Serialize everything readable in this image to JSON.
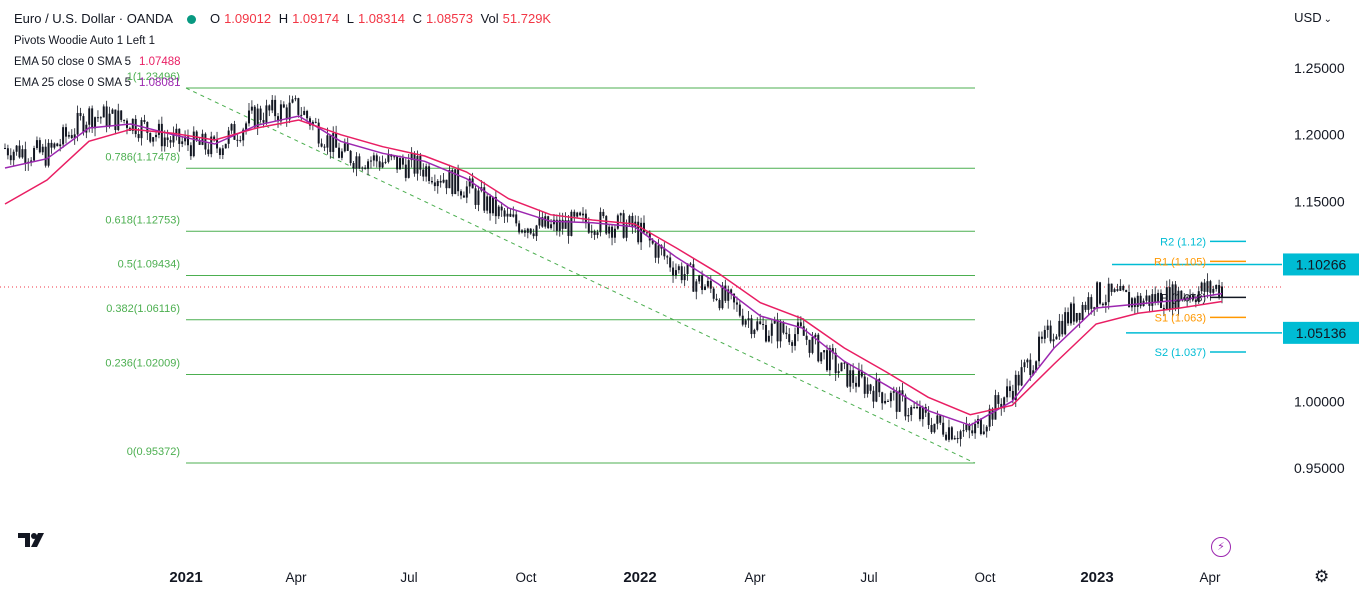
{
  "header": {
    "symbol": "Euro / U.S. Dollar · OANDA",
    "open_label": "O",
    "open": "1.09012",
    "high_label": "H",
    "high": "1.09174",
    "low_label": "L",
    "low": "1.08314",
    "close_label": "C",
    "close": "1.08573",
    "vol_label": "Vol",
    "vol": "51.729K",
    "currency": "USD",
    "status_color": "#089981"
  },
  "indicators": [
    {
      "label": "Pivots Woodie Auto 1 Left 1"
    },
    {
      "label": "EMA 50 close 0 SMA 5",
      "value": "1.07488",
      "color": "#e91e63"
    },
    {
      "label": "EMA 25 close 0 SMA 5",
      "value": "1.08081",
      "color": "#9c27b0"
    }
  ],
  "icons": {
    "logo": "tradingview-logo-icon",
    "settings": "gear-icon",
    "alert": "lightning-icon"
  },
  "chart_data": {
    "type": "line",
    "title": "Euro / U.S. Dollar · OANDA",
    "x_ticks": [
      "2021",
      "Apr",
      "Jul",
      "Oct",
      "2022",
      "Apr",
      "Jul",
      "Oct",
      "2023",
      "Apr"
    ],
    "y_ticks": [
      "1.25000",
      "1.20000",
      "1.15000",
      "1.10000",
      "1.05000",
      "1.00000",
      "0.95000"
    ],
    "ylim": [
      0.92,
      1.265
    ],
    "current_price": 1.08573,
    "price_labels": [
      {
        "value": 1.10266,
        "text": "1.10266"
      },
      {
        "value": 1.05136,
        "text": "1.05136"
      }
    ],
    "fibonacci": [
      {
        "level": "1",
        "value": 1.23496,
        "label": "1(1.23496)"
      },
      {
        "level": "0.786",
        "value": 1.17478,
        "label": "0.786(1.17478)"
      },
      {
        "level": "0.618",
        "value": 1.12753,
        "label": "0.618(1.12753)"
      },
      {
        "level": "0.5",
        "value": 1.09434,
        "label": "0.5(1.09434)"
      },
      {
        "level": "0.382",
        "value": 1.06116,
        "label": "0.382(1.06116)"
      },
      {
        "level": "0.236",
        "value": 1.02009,
        "label": "0.236(1.02009)"
      },
      {
        "level": "0",
        "value": 0.95372,
        "label": "0(0.95372)"
      }
    ],
    "pivots": [
      {
        "name": "R2",
        "value": 1.12,
        "label": "R2 (1.12)",
        "color": "#00bcd4"
      },
      {
        "name": "R1",
        "value": 1.105,
        "label": "R1 (1.105)",
        "color": "#ff9800"
      },
      {
        "name": "P",
        "value": 1.078,
        "label": "P (1.078)",
        "color": "#131722"
      },
      {
        "name": "S1",
        "value": 1.063,
        "label": "S1 (1.063)",
        "color": "#ff9800"
      },
      {
        "name": "S2",
        "value": 1.037,
        "label": "S2 (1.037)",
        "color": "#00bcd4"
      }
    ],
    "series": [
      {
        "name": "EURUSD",
        "style": "candles",
        "x": [
          "2020-11",
          "2020-12",
          "2021-01",
          "2021-02",
          "2021-03",
          "2021-04",
          "2021-05",
          "2021-06",
          "2021-07",
          "2021-08",
          "2021-09",
          "2021-10",
          "2021-11",
          "2021-12",
          "2022-01",
          "2022-02",
          "2022-03",
          "2022-04",
          "2022-05",
          "2022-06",
          "2022-07",
          "2022-08",
          "2022-09",
          "2022-10",
          "2022-11",
          "2022-12",
          "2023-01",
          "2023-02",
          "2023-03",
          "2023-04"
        ],
        "values": [
          1.19,
          1.185,
          1.215,
          1.21,
          1.195,
          1.19,
          1.215,
          1.22,
          1.185,
          1.18,
          1.175,
          1.16,
          1.135,
          1.13,
          1.135,
          1.13,
          1.1,
          1.08,
          1.055,
          1.05,
          1.02,
          1.005,
          0.985,
          0.975,
          1.01,
          1.055,
          1.08,
          1.075,
          1.08,
          1.0857
        ]
      },
      {
        "name": "EMA 25",
        "color": "#9c27b0",
        "values": [
          1.175,
          1.182,
          1.205,
          1.208,
          1.2,
          1.193,
          1.207,
          1.214,
          1.195,
          1.186,
          1.18,
          1.167,
          1.145,
          1.135,
          1.134,
          1.131,
          1.108,
          1.088,
          1.064,
          1.055,
          1.03,
          1.012,
          0.993,
          0.982,
          1.0,
          1.04,
          1.07,
          1.073,
          1.076,
          1.0808
        ]
      },
      {
        "name": "EMA 50",
        "color": "#e91e63",
        "values": [
          1.148,
          1.166,
          1.195,
          1.204,
          1.201,
          1.196,
          1.205,
          1.211,
          1.2,
          1.191,
          1.184,
          1.172,
          1.152,
          1.14,
          1.136,
          1.133,
          1.115,
          1.096,
          1.074,
          1.062,
          1.04,
          1.022,
          1.003,
          0.99,
          0.997,
          1.028,
          1.058,
          1.066,
          1.07,
          1.0749
        ]
      }
    ]
  }
}
